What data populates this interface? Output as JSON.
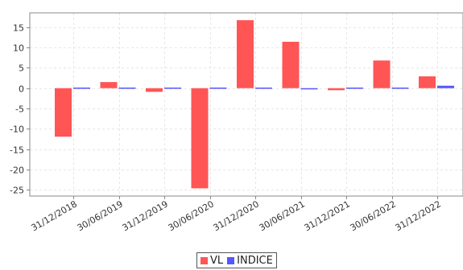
{
  "chart_data": {
    "type": "bar",
    "categories": [
      "31/12/2018",
      "30/06/2019",
      "31/12/2019",
      "30/06/2020",
      "31/12/2020",
      "30/06/2021",
      "31/12/2021",
      "30/06/2022",
      "31/12/2022"
    ],
    "series": [
      {
        "name": "VL",
        "values": [
          -11.9,
          1.5,
          -0.9,
          -24.6,
          16.7,
          11.4,
          -0.5,
          6.8,
          2.9
        ],
        "color": "#ff5555"
      },
      {
        "name": "INDICE",
        "values": [
          0.05,
          0.05,
          0.05,
          0.1,
          -0.15,
          -0.3,
          -0.2,
          0.05,
          0.6
        ],
        "color": "#5555ff"
      }
    ],
    "ylim": [
      -26.5,
      18.5
    ],
    "yticks": [
      -25,
      -20,
      -15,
      -10,
      -5,
      0,
      5,
      10,
      15
    ],
    "grid": true,
    "legend_position": "bottom-center",
    "title": "",
    "xlabel": "",
    "ylabel": ""
  }
}
